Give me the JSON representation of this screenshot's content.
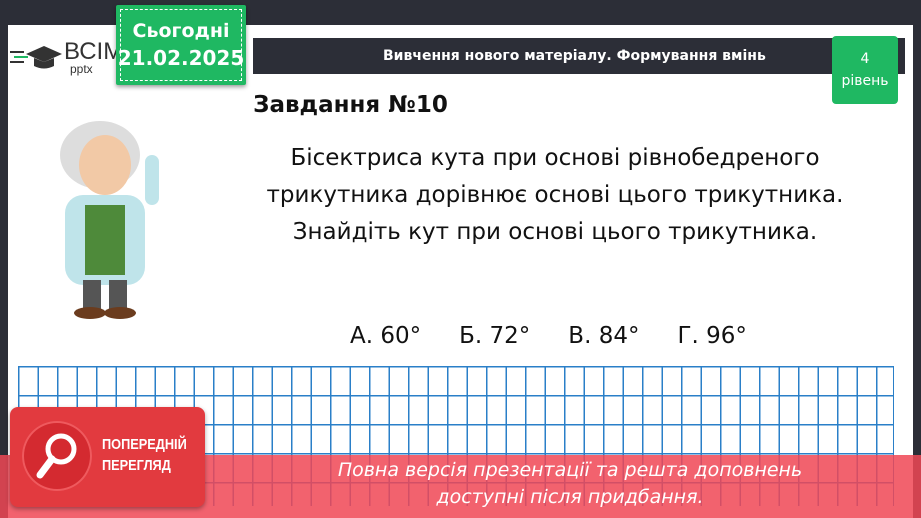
{
  "logo": {
    "brand": "ВСІМ",
    "sub": "pptx"
  },
  "date": {
    "label": "Сьогодні",
    "value": "21.02.2025"
  },
  "header": {
    "title": "Вивчення нового матеріалу.  Формування вмінь"
  },
  "level": {
    "number": "4",
    "label": "рівень"
  },
  "task": {
    "title": "Завдання №10",
    "text": "Бісектриса кута при основі рівнобедреного трикутника дорівнює основі цього трикутника. Знайдіть кут при основі цього трикутника."
  },
  "answers": [
    "А. 60°",
    "Б. 72°",
    "В. 84°",
    "Г. 96°"
  ],
  "preview": {
    "badge_line1": "ПОПЕРЕДНІЙ",
    "badge_line2": "ПЕРЕГЛЯД",
    "notice": "Повна версія презентації та решта доповнень доступні після придбання."
  },
  "colors": {
    "accent_green": "#1fb862",
    "dark": "#2c2e37",
    "grid": "#2a7fc8",
    "preview_red": "#e23a3f"
  }
}
